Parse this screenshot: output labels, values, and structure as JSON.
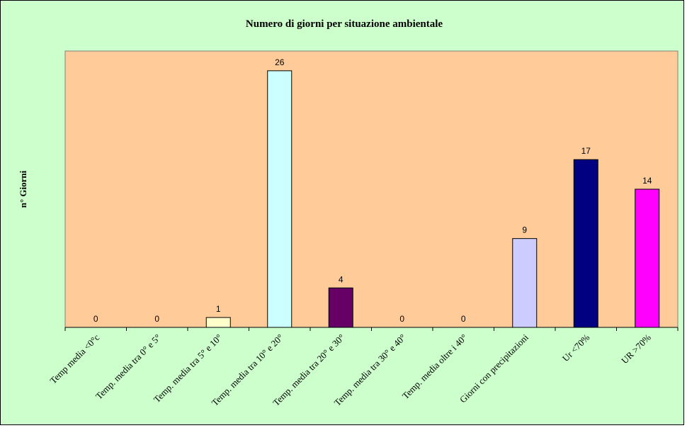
{
  "chart_data": {
    "type": "bar",
    "title": "Numero di giorni per situazione ambientale",
    "xlabel": "",
    "ylabel": "n° Giorni",
    "ylim": [
      0,
      28
    ],
    "grid": false,
    "legend": "none",
    "categories": [
      "Temp media <0°c",
      "Temp. media tra 0° e 5°",
      "Temp. media tra 5° e 10°",
      "Temp. media tra 10° e 20°",
      "Temp. media tra 20° e 30°",
      "Temp. media tra 30° e 40°",
      "Temp. media oltre i 40°",
      "Giorni con precipitazioni",
      "Ur  <70%",
      "UR >70%"
    ],
    "values": [
      0,
      0,
      1,
      26,
      4,
      0,
      0,
      9,
      17,
      14
    ],
    "bar_colors": [
      "#ffffcc",
      "#ffffcc",
      "#ffffcc",
      "#ccffff",
      "#660066",
      "#ff8080",
      "#0066cc",
      "#ccccff",
      "#000080",
      "#ff00ff"
    ],
    "plot_background": "#ffcc99",
    "chart_background": "#ccffcc"
  }
}
